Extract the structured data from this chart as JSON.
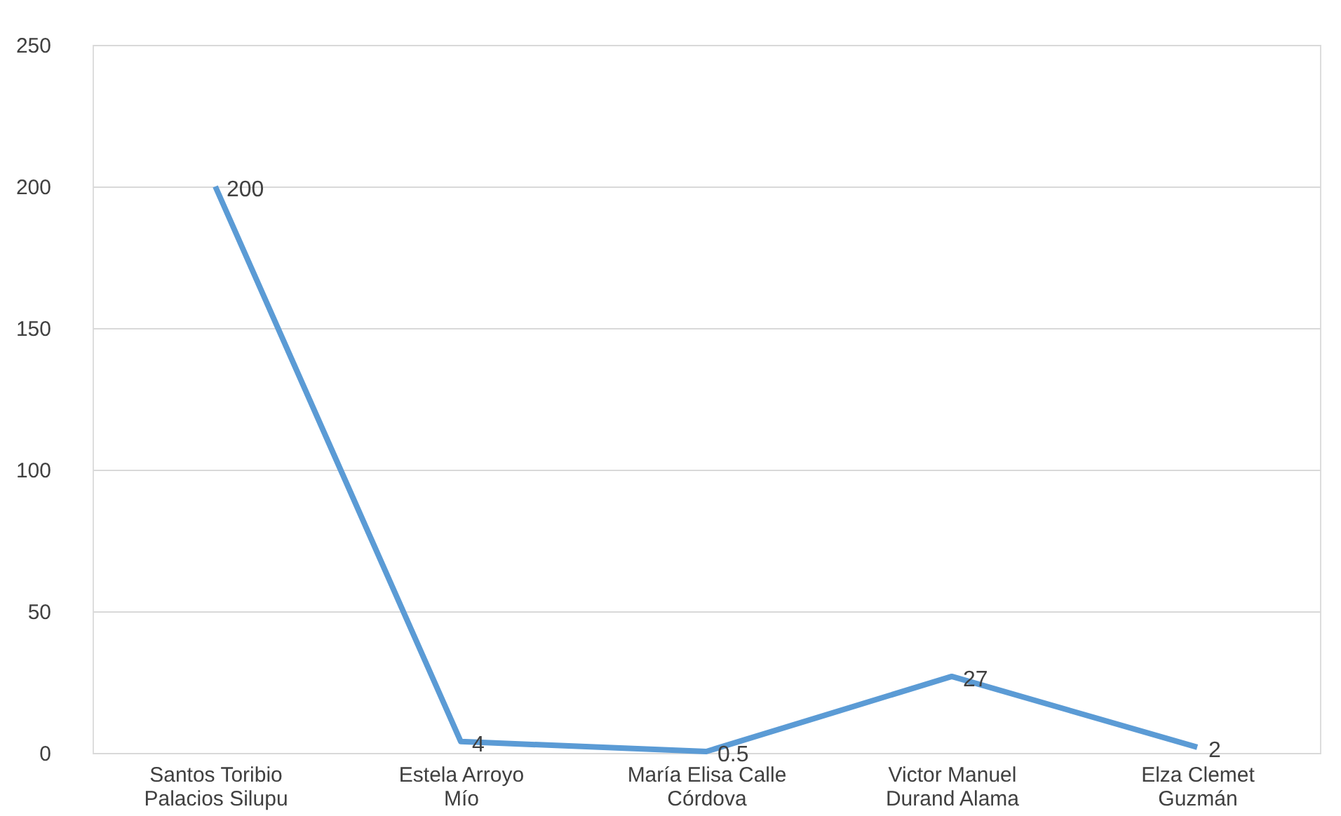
{
  "chart_data": {
    "type": "line",
    "categories": [
      "Santos Toribio\nPalacios Silupu",
      "Estela Arroyo\nMío",
      "María Elisa Calle\nCórdova",
      "Victor Manuel\nDurand Alama",
      "Elza Clemet\nGuzmán"
    ],
    "series": [
      {
        "color": "#5b9bd5",
        "values": [
          200,
          4,
          0.5,
          27,
          2
        ]
      }
    ],
    "ylim": [
      0,
      250
    ],
    "yticks": [
      0,
      50,
      100,
      150,
      200,
      250
    ],
    "grid": "y",
    "data_labels": true,
    "legend": false,
    "marker": "none",
    "line_style": "solid"
  }
}
